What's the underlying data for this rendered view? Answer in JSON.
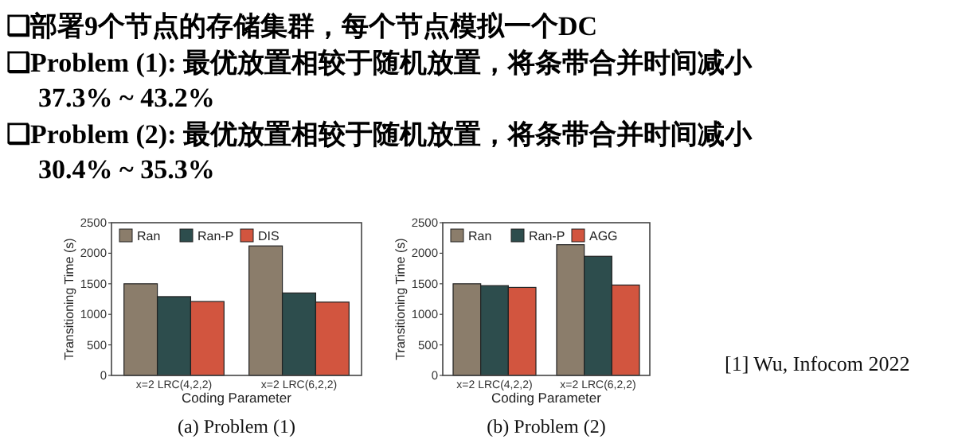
{
  "chart_data": [
    {
      "type": "bar",
      "title": "(a) Problem (1)",
      "xlabel": "Coding Parameter",
      "ylabel": "Transitioning Time (s)",
      "categories": [
        "x=2 LRC(4,2,2)",
        "x=2 LRC(6,2,2)"
      ],
      "series": [
        {
          "name": "Ran",
          "color": "#8b7d6b",
          "values": [
            1500,
            2120
          ]
        },
        {
          "name": "Ran-P",
          "color": "#2d4d4d",
          "values": [
            1290,
            1350
          ]
        },
        {
          "name": "DIS",
          "color": "#d2553f",
          "values": [
            1210,
            1200
          ]
        }
      ],
      "ylim": [
        0,
        2500
      ],
      "yticks": [
        0,
        500,
        1000,
        1500,
        2000,
        2500
      ],
      "legend": "top left",
      "annotations": [
        "❑部署9个节点的存储集群，每个节点模拟一个DC",
        "❑Problem (1): 最优放置相较于随机放置，将条带合并时间减小\n37.3% ~ 43.2%",
        "❑Problem (2): 最优放置相较于随机放置，将条带合并时间减小\n30.4% ~ 35.3%"
      ]
    },
    {
      "type": "bar",
      "title": "(b) Problem (2)",
      "xlabel": "Coding Parameter",
      "ylabel": "Transitioning Time (s)",
      "categories": [
        "x=2 LRC(4,2,2)",
        "x=2 LRC(6,2,2)"
      ],
      "series": [
        {
          "name": "Ran",
          "color": "#8b7d6b",
          "values": [
            1500,
            2140
          ]
        },
        {
          "name": "Ran-P",
          "color": "#2d4d4d",
          "values": [
            1470,
            1950
          ]
        },
        {
          "name": "AGG",
          "color": "#d2553f",
          "values": [
            1440,
            1480
          ]
        }
      ],
      "ylim": [
        0,
        2500
      ],
      "yticks": [
        0,
        500,
        1000,
        1500,
        2000,
        2500
      ],
      "legend": "top left",
      "annotations": [
        "[1] Wu, Infocom 2022"
      ]
    }
  ]
}
